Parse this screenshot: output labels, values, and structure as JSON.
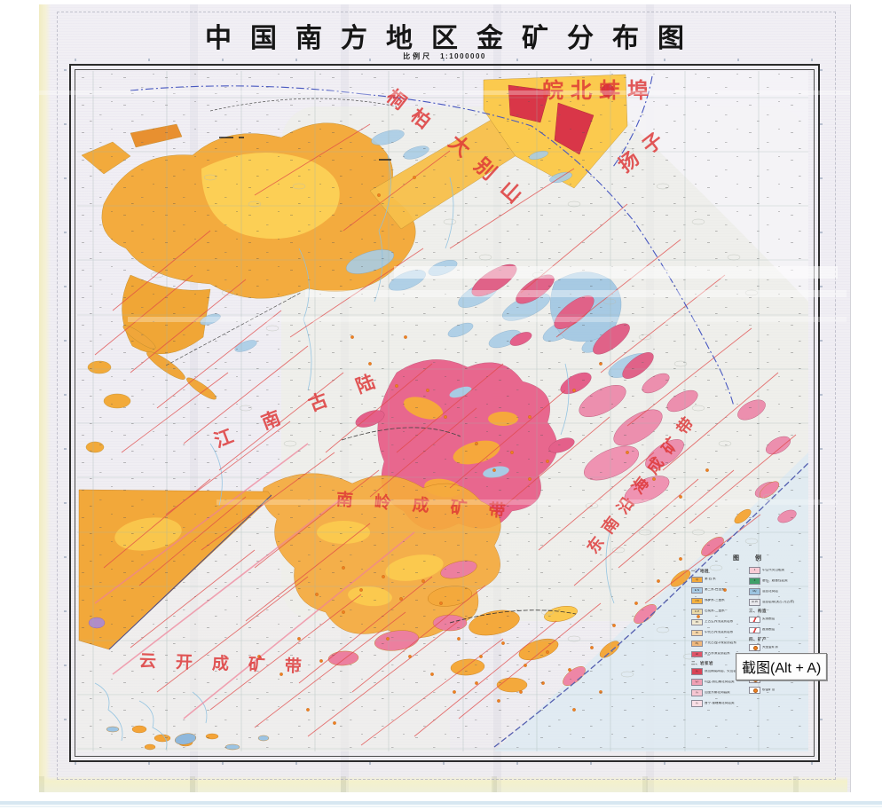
{
  "title": "中国南方地区金矿分布图",
  "scale": {
    "label": "比例尺",
    "value": "1:1000000"
  },
  "tooltip": {
    "text": "截图(Alt + A)"
  },
  "annotations": [
    {
      "id": "wanbei-bengbu",
      "text": "皖北蚌埠"
    },
    {
      "id": "tongbai",
      "text": "桐柏"
    },
    {
      "id": "dabieshan",
      "text": "大别山"
    },
    {
      "id": "yangzi",
      "text": "扬子"
    },
    {
      "id": "jiangnan-gulu",
      "text": "江南古陆"
    },
    {
      "id": "nanling-belt",
      "text": "南岭成矿带"
    },
    {
      "id": "se-coast-belt",
      "text": "东南沿海成矿带"
    },
    {
      "id": "yunkai-belt",
      "text": "云开成矿带"
    }
  ],
  "legend": {
    "title": "图 例",
    "columns": [
      {
        "blocks": [
          {
            "heading": "一、地层",
            "items": [
              {
                "symbol": "Q",
                "color": "#f2a93c",
                "label": "第 四 系"
              },
              {
                "symbol": "E·N",
                "color": "#a9cce6",
                "label": "第三系-白垩系"
              },
              {
                "symbol": "J·K",
                "color": "#f6b23f",
                "label": "侏罗系-三叠系"
              },
              {
                "symbol": "C·P",
                "color": "#ead9a8",
                "label": "石炭系-二叠系"
              },
              {
                "symbol": "Pz",
                "color": "#f0e8d0",
                "label": "上古生界浅变质岩系"
              },
              {
                "symbol": "Pt",
                "color": "#f5d5a8",
                "label": "中元古界浅变质岩系"
              },
              {
                "symbol": "Pt₁",
                "color": "#f0b87c",
                "label": "下元古界中深变质岩系"
              },
              {
                "symbol": "Ar",
                "color": "#df5468",
                "label": "太古界深变质岩系"
              }
            ]
          },
          {
            "heading": "二、岩浆岩",
            "items": [
              {
                "symbol": "γ₅",
                "color": "#d94456",
                "hatch": true,
                "label": "燕山期花岗岩、火山岩"
              },
              {
                "symbol": "γ₅¹",
                "color": "#f0a0b4",
                "label": "印支-燕山期花岗岩类"
              },
              {
                "symbol": "γ₃",
                "color": "#f6c6d2",
                "label": "加里东期花岗岩类"
              },
              {
                "symbol": "γ₂",
                "color": "#fadfe6",
                "label": "晋宁-雪峰期花岗岩类"
              }
            ]
          }
        ]
      },
      {
        "blocks": [
          {
            "heading": "",
            "items": [
              {
                "symbol": "λ",
                "color": "#f8ccd6",
                "hatch": true,
                "label": "中生代火山岩类"
              },
              {
                "symbol": "Σ",
                "color": "#3fa06a",
                "label": "基性、超基性岩类"
              },
              {
                "symbol": "Mγ",
                "color": "#9cc4e0",
                "hatch": true,
                "label": "混合花岗岩"
              },
              {
                "symbol": "Ar·Pt",
                "color": "#e8e8ec",
                "label": "混合岩带(太古-元古界)"
              }
            ]
          },
          {
            "heading": "三、构造",
            "items": [
              {
                "type": "line",
                "label": "实测断层"
              },
              {
                "type": "line",
                "label": "推测断层"
              }
            ]
          },
          {
            "heading": "四、矿产",
            "items": [
              {
                "type": "dot",
                "label": "大型金矿床"
              },
              {
                "type": "dot",
                "label": "中型金矿床"
              },
              {
                "type": "dot",
                "label": "小型金矿床"
              },
              {
                "type": "dot",
                "label": "金矿点"
              },
              {
                "type": "dot",
                "label": "砂金矿点"
              }
            ]
          }
        ]
      }
    ]
  },
  "palette": {
    "orange": "#f3ab3e",
    "yellow": "#fbca4e",
    "magenta": "#e85c86",
    "rose": "#ec8fae",
    "blue_patch": "#a9cce6",
    "fault_red": "#e04848",
    "annotation_red": "#dd3434",
    "boundary_blue": "#4858c0",
    "sea": "#dfeaf2",
    "crimson": "#d93648",
    "paper": "#f1eff4",
    "edge_yellow": "#f4f1cb",
    "frame": "#2b2b2b",
    "grid": "#9db3b0",
    "bottom_strip": "#d7e7f1"
  }
}
